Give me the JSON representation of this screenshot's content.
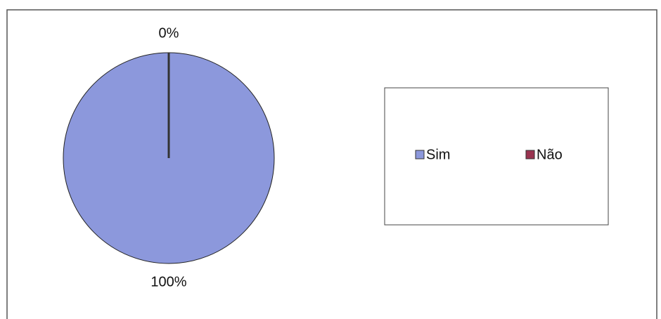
{
  "chart_data": {
    "type": "pie",
    "categories": [
      "Sim",
      "Não"
    ],
    "values": [
      100,
      0
    ],
    "value_labels": [
      "100%",
      "0%"
    ],
    "colors": [
      "#8c98dc",
      "#993350"
    ],
    "legend": "right"
  }
}
